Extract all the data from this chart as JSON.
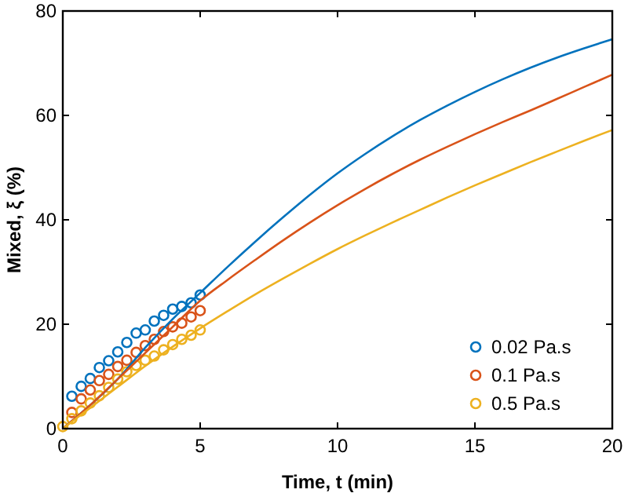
{
  "chart_data": {
    "type": "line",
    "xlabel": "Time, t (min)",
    "ylabel": "Mixed, ξ (%)",
    "xlim": [
      0,
      20
    ],
    "ylim": [
      0,
      80
    ],
    "xticks": [
      0,
      5,
      10,
      15,
      20
    ],
    "yticks": [
      0,
      20,
      40,
      60,
      80
    ],
    "grid": false,
    "legend": "bottom right",
    "series": [
      {
        "type": "scatter",
        "name": "0.02 Pa.s",
        "color": "#0072bd",
        "marker": "circle",
        "x": [
          0.33,
          0.67,
          1,
          1.33,
          1.67,
          2,
          2.33,
          2.67,
          3,
          3.33,
          3.67,
          4,
          4.33,
          4.67,
          5
        ],
        "values": [
          6.2,
          8.1,
          9.6,
          11.7,
          13,
          14.7,
          16.5,
          18.3,
          18.9,
          20.6,
          21.7,
          22.9,
          23.4,
          24.1,
          25.6
        ]
      },
      {
        "type": "scatter",
        "name": "0.1 Pa.s",
        "color": "#d95319",
        "marker": "circle",
        "x": [
          0.33,
          0.67,
          1,
          1.33,
          1.67,
          2,
          2.33,
          2.67,
          3,
          3.33,
          3.67,
          4,
          4.33,
          4.67,
          5
        ],
        "values": [
          3.1,
          5.7,
          7.4,
          9.2,
          10.4,
          11.9,
          13.1,
          14.6,
          15.9,
          17.1,
          18.6,
          19.5,
          20.2,
          21.4,
          22.6
        ]
      },
      {
        "type": "scatter",
        "name": "0.5 Pa.s",
        "color": "#edb120",
        "marker": "circle",
        "x": [
          0,
          0.33,
          0.67,
          1,
          1.33,
          1.67,
          2,
          2.33,
          2.67,
          3,
          3.33,
          3.67,
          4,
          4.33,
          4.67,
          5
        ],
        "values": [
          0.4,
          1.9,
          3.4,
          4.9,
          6.3,
          7.9,
          9.5,
          10.9,
          12.1,
          13.1,
          13.9,
          15.1,
          16.1,
          17.1,
          17.9,
          18.9
        ]
      },
      {
        "color": "#0072bd",
        "line_style": "solid",
        "x": [
          0,
          1,
          2,
          3,
          4,
          5,
          6,
          7,
          8,
          9,
          10,
          11,
          12,
          13,
          14,
          15,
          16,
          17,
          18,
          19,
          20
        ],
        "values": [
          0,
          4.5,
          9.5,
          15.5,
          21,
          26,
          31,
          35.8,
          40.4,
          44.8,
          48.9,
          52.6,
          56,
          59.1,
          61.9,
          64.5,
          66.9,
          69.1,
          71.1,
          72.9,
          74.6
        ]
      },
      {
        "color": "#d95319",
        "line_style": "solid",
        "x": [
          0,
          1,
          2,
          3,
          4,
          5,
          6,
          7,
          8,
          9,
          10,
          11,
          12,
          13,
          14,
          15,
          16,
          17,
          18,
          19,
          20
        ],
        "values": [
          0,
          4.5,
          9.5,
          14.5,
          19.5,
          24.5,
          28.5,
          32.3,
          36,
          39.5,
          42.8,
          45.9,
          48.8,
          51.5,
          54,
          56.4,
          58.7,
          60.9,
          63.2,
          65.5,
          67.8
        ]
      },
      {
        "color": "#edb120",
        "line_style": "solid",
        "x": [
          0,
          1,
          2,
          3,
          4,
          5,
          6,
          7,
          8,
          9,
          10,
          11,
          12,
          13,
          14,
          15,
          16,
          17,
          18,
          19,
          20
        ],
        "values": [
          0,
          4,
          8,
          12,
          15.7,
          19.2,
          22.5,
          25.7,
          28.7,
          31.6,
          34.4,
          37,
          39.5,
          41.9,
          44.3,
          46.6,
          48.8,
          51,
          53.1,
          55.2,
          57.2
        ]
      }
    ]
  }
}
